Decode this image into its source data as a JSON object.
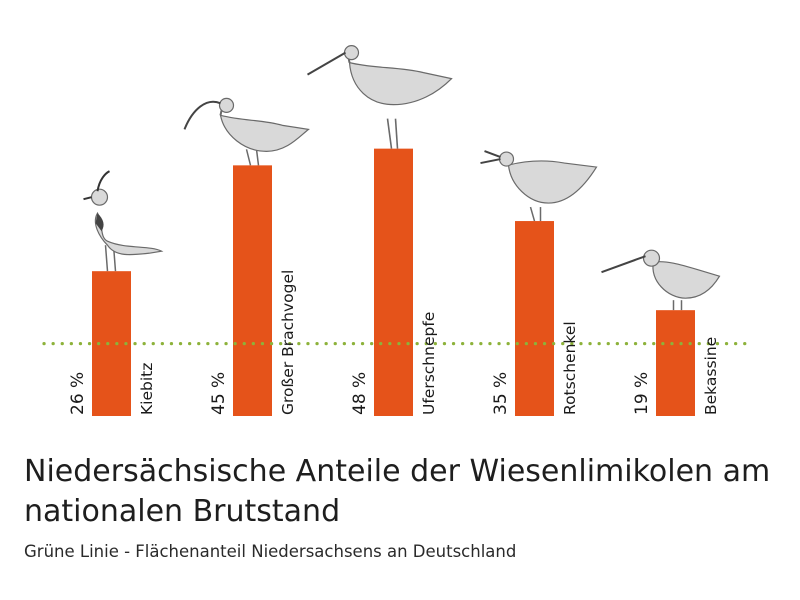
{
  "chart_data": {
    "type": "bar",
    "title": "Niedersächsische Anteile der Wiesenlimikolen am nationalen Brutstand",
    "subtitle": "Grüne Linie - Flächenanteil Niedersachsens an Deutschland",
    "categories": [
      "Kiebitz",
      "Großer Brachvogel",
      "Uferschnepfe",
      "Rotschenkel",
      "Bekassine"
    ],
    "values": [
      26,
      45,
      48,
      35,
      19
    ],
    "value_labels": [
      "26 %",
      "45 %",
      "48 %",
      "35 %",
      "19 %"
    ],
    "reference_line": {
      "value": 13,
      "label": "Grüne Linie - Flächenanteil Niedersachsens an Deutschland"
    },
    "unit": "%",
    "ylim": [
      0,
      55
    ],
    "xlabel": "",
    "ylabel": "",
    "grid": false,
    "colors": {
      "bar": "#E5531A",
      "reference": "#8DB23A",
      "bird": "#6a6a6a"
    },
    "icons": [
      "lapwing-illustration",
      "curlew-illustration",
      "godwit-illustration",
      "redshank-illustration",
      "snipe-illustration"
    ]
  }
}
